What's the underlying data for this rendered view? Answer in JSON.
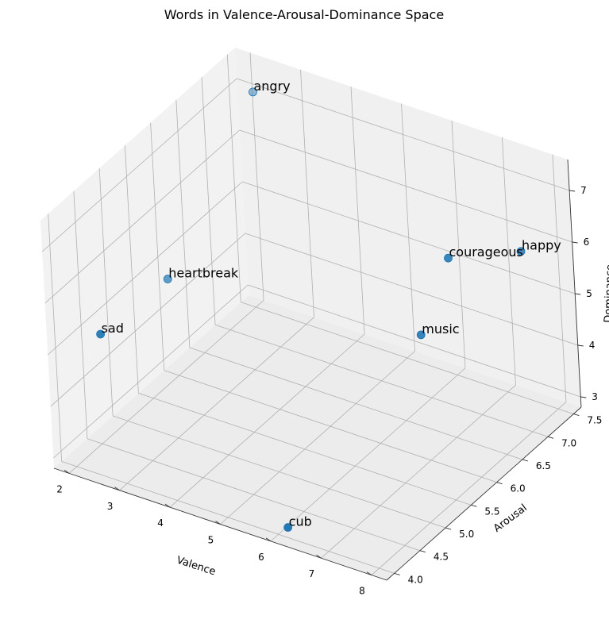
{
  "chart_data": {
    "type": "scatter3d",
    "title": "Words in Valence-Arousal-Dominance Space",
    "xlabel": "Valence",
    "ylabel": "Arousal",
    "zlabel": "Dominance",
    "x_ticks": [
      "2",
      "3",
      "4",
      "5",
      "6",
      "7",
      "8"
    ],
    "y_ticks": [
      "4.0",
      "4.5",
      "5.0",
      "5.5",
      "6.0",
      "6.5",
      "7.0",
      "7.5"
    ],
    "z_ticks": [
      "3",
      "4",
      "5",
      "6",
      "7"
    ],
    "xlim": [
      1.7,
      8.3
    ],
    "ylim": [
      3.85,
      7.65
    ],
    "zlim": [
      2.8,
      7.6
    ],
    "grid": true,
    "marker_color": "#1f77b4",
    "points": [
      {
        "word": "angry",
        "valence": 2.5,
        "arousal": 7.2,
        "dominance": 7.4
      },
      {
        "word": "courageous",
        "valence": 8.0,
        "arousal": 5.6,
        "dominance": 7.4
      },
      {
        "word": "happy",
        "valence": 8.5,
        "arousal": 6.5,
        "dominance": 6.9
      },
      {
        "word": "music",
        "valence": 7.8,
        "arousal": 5.2,
        "dominance": 6.2
      },
      {
        "word": "heartbreak",
        "valence": 2.2,
        "arousal": 5.7,
        "dominance": 5.0
      },
      {
        "word": "sad",
        "valence": 2.3,
        "arousal": 4.3,
        "dominance": 5.2
      },
      {
        "word": "cub",
        "valence": 6.2,
        "arousal": 4.0,
        "dominance": 3.0
      }
    ]
  }
}
